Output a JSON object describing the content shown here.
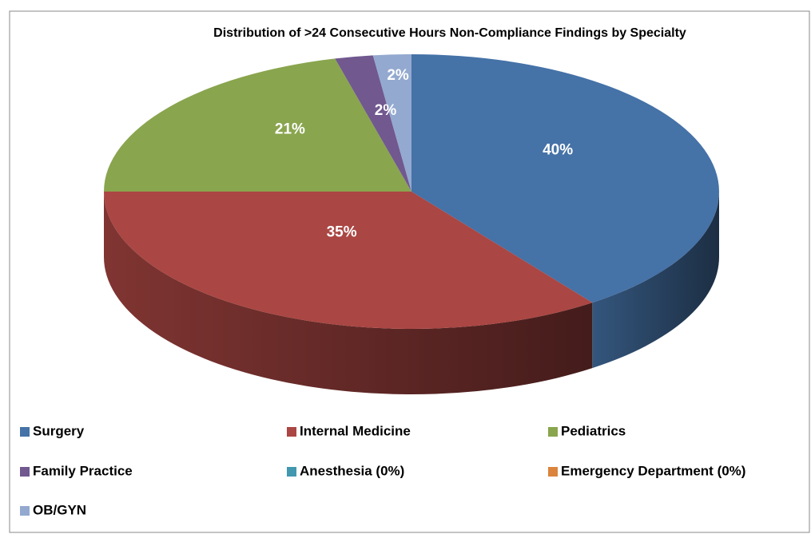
{
  "chart_data": {
    "type": "pie3d",
    "title": "Distribution of >24 Consecutive Hours Non-Compliance Findings by Specialty",
    "categories": [
      "Surgery",
      "Internal Medicine",
      "Pediatrics",
      "Family Practice",
      "Anesthesia (0%)",
      "Emergency Department (0%)",
      "OB/GYN"
    ],
    "values": [
      40,
      35,
      21,
      2,
      0,
      0,
      2
    ],
    "value_labels": [
      "40%",
      "35%",
      "21%",
      "2%",
      null,
      null,
      "2%"
    ],
    "colors": [
      "#4572a7",
      "#aa4643",
      "#89a54e",
      "#71588f",
      "#4198af",
      "#db843d",
      "#93a9cf"
    ],
    "legend": "bottom"
  }
}
